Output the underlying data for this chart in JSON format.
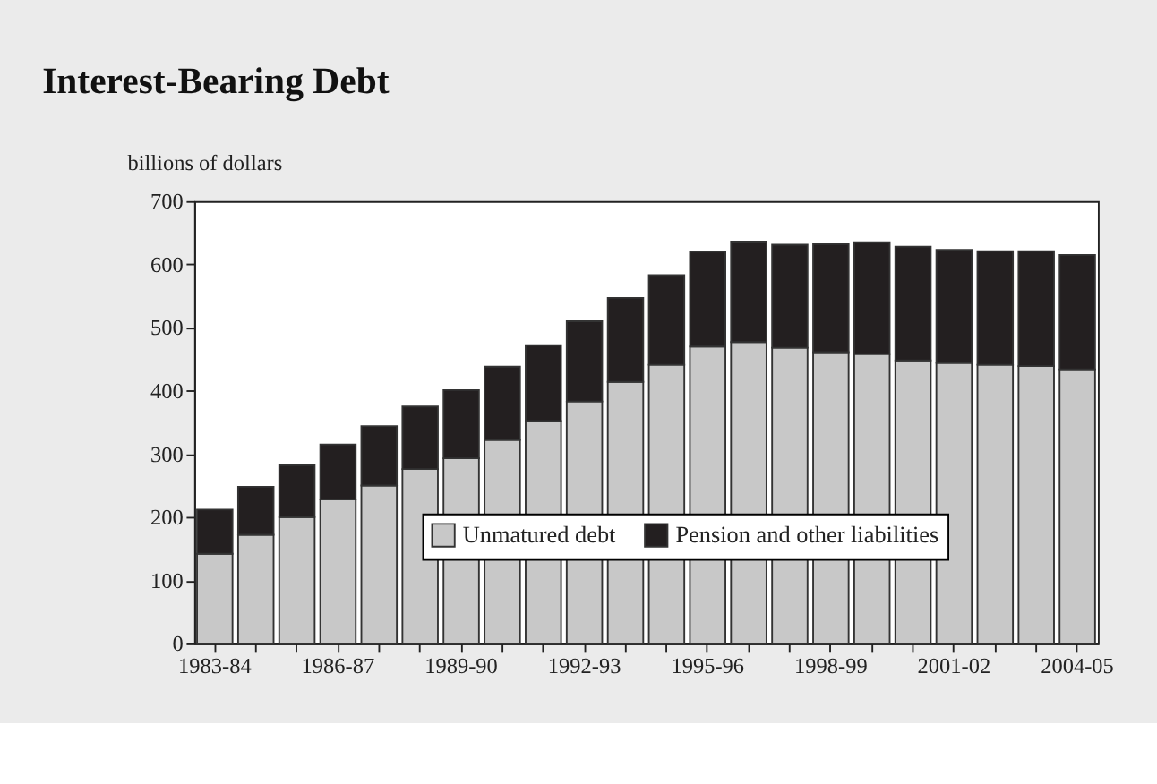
{
  "chart_data": {
    "type": "bar",
    "title": "Interest-Bearing Debt",
    "ylabel": "billions of dollars",
    "categories": [
      "1983-84",
      null,
      null,
      "1986-87",
      null,
      null,
      "1989-90",
      null,
      null,
      "1992-93",
      null,
      null,
      "1995-96",
      null,
      null,
      "1998-99",
      null,
      null,
      "2001-02",
      null,
      null,
      "2004-05"
    ],
    "series": [
      {
        "name": "Unmatured debt",
        "color": "#c8c8c8",
        "values": [
          142,
          172,
          200,
          228,
          250,
          276,
          293,
          322,
          352,
          383,
          414,
          441,
          470,
          477,
          468,
          461,
          458,
          448,
          444,
          441,
          439,
          434
        ]
      },
      {
        "name": "Pension and other liabilities",
        "color": "#231f20",
        "values": [
          70,
          76,
          82,
          87,
          94,
          99,
          108,
          116,
          120,
          127,
          133,
          142,
          150,
          159,
          163,
          171,
          177,
          180,
          179,
          180,
          182,
          181
        ]
      }
    ],
    "stacked": true,
    "ylim": [
      0,
      700
    ],
    "yticks": [
      0,
      100,
      200,
      300,
      400,
      500,
      600,
      700
    ],
    "grid": false,
    "legend": "bottom"
  }
}
